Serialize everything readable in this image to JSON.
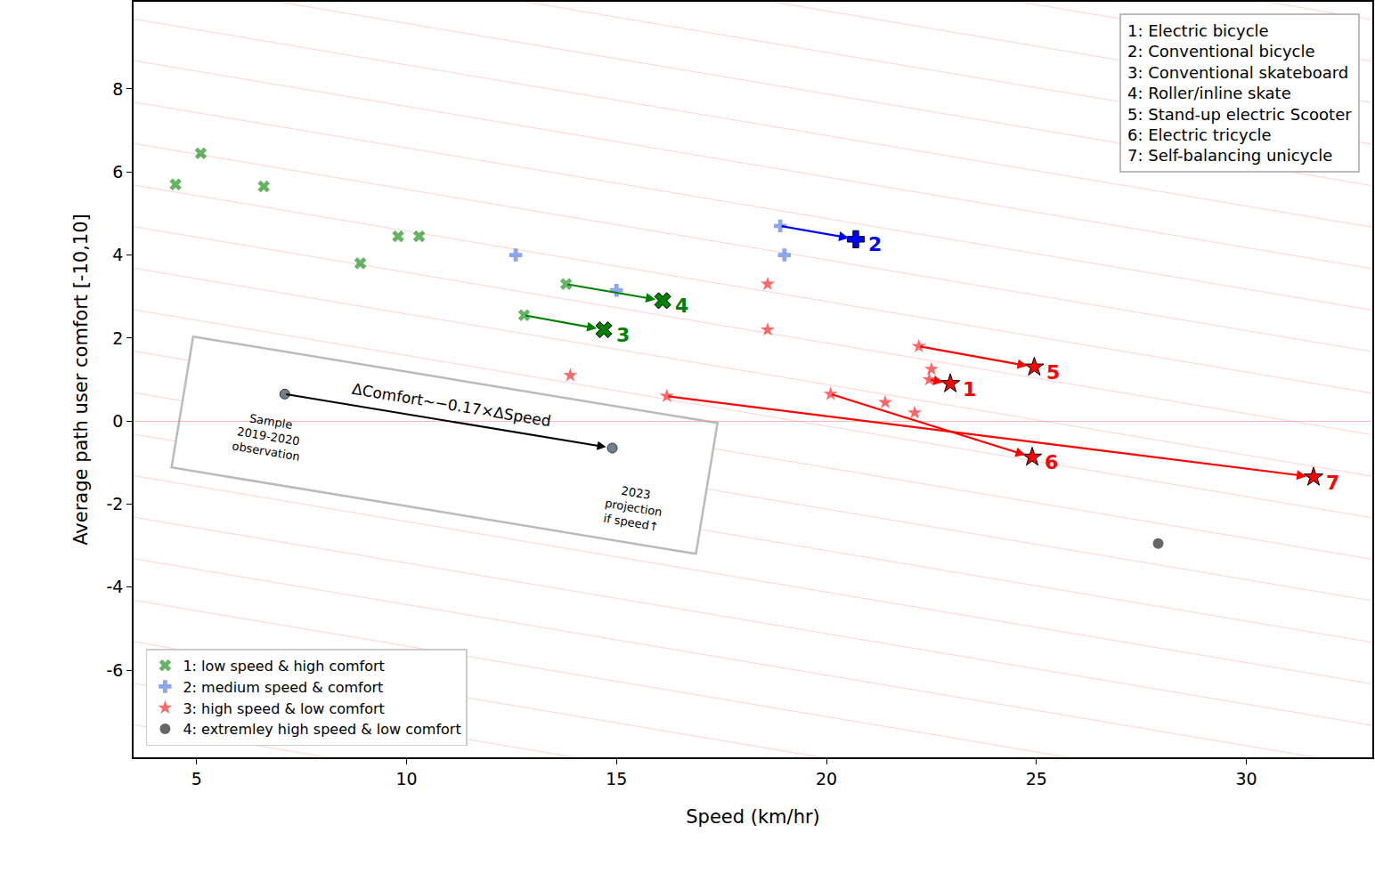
{
  "chart_data": {
    "type": "scatter",
    "x_label": "Speed (km/hr)",
    "y_label": "Average path user comfort [-10,10]",
    "xlim": [
      3.5,
      33
    ],
    "ylim": [
      -8.1,
      10.1
    ],
    "xticks": [
      5,
      10,
      15,
      20,
      25,
      30
    ],
    "yticks": [
      -6,
      -4,
      -2,
      0,
      2,
      4,
      6,
      8
    ],
    "legend": "lower left",
    "series": [
      {
        "name": "1: low speed & high comfort",
        "color": "green",
        "marker": "x",
        "x": [
          4.5,
          5.1,
          6.6,
          8.9,
          9.8,
          10.3,
          13.8,
          12.8
        ],
        "y": [
          5.7,
          6.45,
          5.65,
          3.8,
          4.45,
          4.45,
          3.3,
          2.55
        ]
      },
      {
        "name": "2: medium speed & comfort",
        "color": "royalblue",
        "marker": "cross",
        "x": [
          12.6,
          15.0,
          18.9,
          19.0
        ],
        "y": [
          4.0,
          3.15,
          4.7,
          4.0
        ]
      },
      {
        "name": "3: high speed & low comfort",
        "color": "red",
        "marker": "star",
        "x": [
          13.9,
          16.2,
          18.6,
          18.6,
          20.1,
          21.4,
          22.1,
          22.2,
          22.5,
          22.45
        ],
        "y": [
          1.1,
          0.6,
          3.3,
          2.2,
          0.65,
          0.45,
          0.2,
          1.8,
          1.25,
          1.0
        ]
      },
      {
        "name": "4: extremley high speed & low comfort",
        "color": "black",
        "marker": "circle",
        "x": [
          27.9
        ],
        "y": [
          -2.95
        ]
      }
    ],
    "projections": [
      {
        "label": "1",
        "key": "1: Electric bicycle",
        "color": "red",
        "marker": "star",
        "from": [
          22.45,
          1.0
        ],
        "to": [
          22.95,
          0.9
        ]
      },
      {
        "label": "2",
        "key": "2: Conventional bicycle",
        "color": "blue",
        "marker": "cross",
        "from": [
          18.9,
          4.7
        ],
        "to": [
          20.7,
          4.38
        ]
      },
      {
        "label": "3",
        "key": "3: Conventional skateboard",
        "color": "green",
        "marker": "x",
        "from": [
          12.8,
          2.55
        ],
        "to": [
          14.7,
          2.2
        ]
      },
      {
        "label": "4",
        "key": "4: Roller/inline skate",
        "color": "green",
        "marker": "x",
        "from": [
          13.8,
          3.3
        ],
        "to": [
          16.1,
          2.9
        ]
      },
      {
        "label": "5",
        "key": "5: Stand-up electric Scooter",
        "color": "red",
        "marker": "star",
        "from": [
          22.2,
          1.8
        ],
        "to": [
          24.95,
          1.3
        ]
      },
      {
        "label": "6",
        "key": "6: Electric tricycle",
        "color": "red",
        "marker": "star",
        "from": [
          20.1,
          0.65
        ],
        "to": [
          24.9,
          -0.87
        ]
      },
      {
        "label": "7",
        "key": "7: Self-balancing unicycle",
        "color": "red",
        "marker": "star",
        "from": [
          16.2,
          0.6
        ],
        "to": [
          31.6,
          -1.35
        ]
      }
    ],
    "inset": {
      "text": "ΔComfort~−0.17×ΔSpeed",
      "slope": -0.17,
      "from": {
        "x": 7.1,
        "y": 0.65,
        "label": [
          "Sample",
          "2019-2020",
          "observation"
        ]
      },
      "to": {
        "x": 14.9,
        "y": -0.65,
        "label": [
          "2023",
          "projection",
          "if speed↑"
        ]
      }
    }
  }
}
